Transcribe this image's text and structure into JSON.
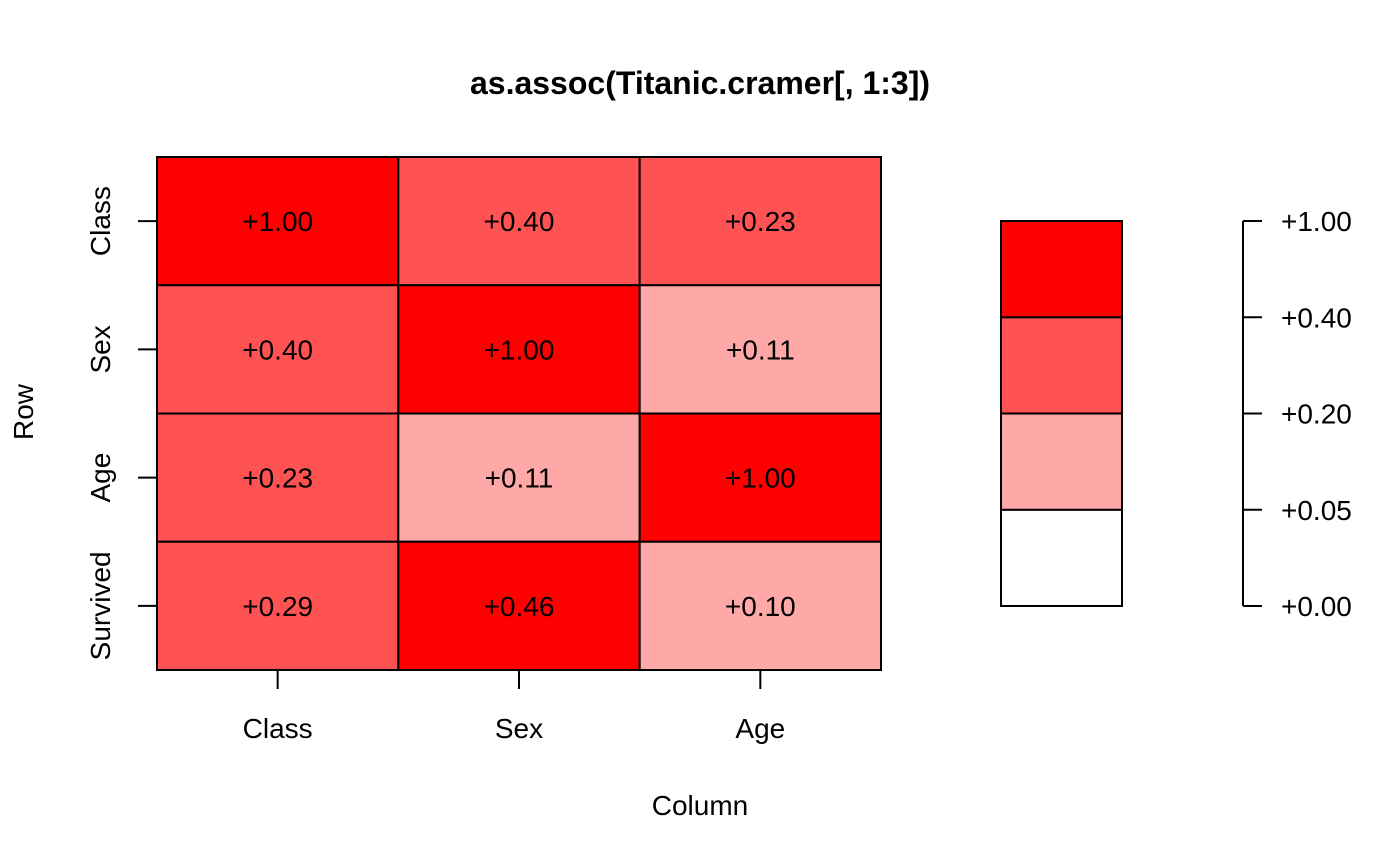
{
  "chart_data": {
    "type": "heatmap",
    "title": "as.assoc(Titanic.cramer[, 1:3])",
    "xlabel": "Column",
    "ylabel": "Row",
    "columns": [
      "Class",
      "Sex",
      "Age"
    ],
    "rows": [
      "Class",
      "Sex",
      "Age",
      "Survived"
    ],
    "values": [
      [
        1.0,
        0.4,
        0.23
      ],
      [
        0.4,
        1.0,
        0.11
      ],
      [
        0.23,
        0.11,
        1.0
      ],
      [
        0.29,
        0.46,
        0.1
      ]
    ],
    "cell_labels": [
      [
        "+1.00",
        "+0.40",
        "+0.23"
      ],
      [
        "+0.40",
        "+1.00",
        "+0.11"
      ],
      [
        "+0.23",
        "+0.11",
        "+1.00"
      ],
      [
        "+0.29",
        "+0.46",
        "+0.10"
      ]
    ],
    "legend": {
      "breaks": [
        0.0,
        0.05,
        0.2,
        0.4,
        1.0
      ],
      "tick_labels": [
        "+0.00",
        "+0.05",
        "+0.20",
        "+0.40",
        "+1.00"
      ],
      "bin_colors": [
        "#FFFFFF",
        "#FFA8A8",
        "#FF5252",
        "#FF0000"
      ]
    }
  }
}
